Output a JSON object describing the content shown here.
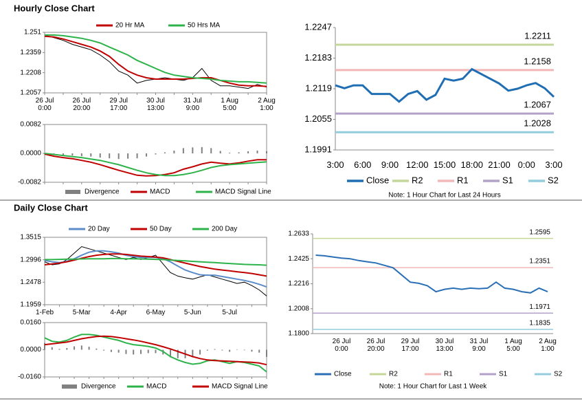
{
  "header": {
    "hourly_title": "Hourly Close Chart",
    "daily_title": "Daily Close Chart"
  },
  "chart_data": [
    {
      "type": "line",
      "categories": [
        "26 Jul\n0:00",
        null,
        null,
        null,
        "26 Jul\n20:00",
        null,
        null,
        null,
        "29 Jul\n17:00",
        null,
        null,
        null,
        "30 Jul\n13:00",
        null,
        null,
        null,
        "31 Jul\n9:00",
        null,
        null,
        null,
        "1 Aug\n5:00",
        null,
        null,
        null,
        "2 Aug\n1:00"
      ],
      "ylim": [
        1.2057,
        1.251
      ],
      "yticks": [
        1.2057,
        1.2208,
        1.2359,
        1.251
      ],
      "series": [
        {
          "color": "#000000",
          "values": [
            1.249,
            1.247,
            1.245,
            1.242,
            1.24,
            1.238,
            1.234,
            1.229,
            1.222,
            1.219,
            1.213,
            1.215,
            1.216,
            1.217,
            1.216,
            1.215,
            1.217,
            1.224,
            1.215,
            1.211,
            1.211,
            1.21,
            1.209,
            1.212,
            1.21
          ]
        },
        {
          "name": "20 Hr MA",
          "color": "#c00000",
          "values": [
            1.248,
            1.2475,
            1.246,
            1.244,
            1.242,
            1.24,
            1.237,
            1.233,
            1.227,
            1.222,
            1.219,
            1.217,
            1.216,
            1.216,
            1.216,
            1.216,
            1.2165,
            1.217,
            1.217,
            1.215,
            1.213,
            1.2115,
            1.211,
            1.211,
            1.2105
          ]
        },
        {
          "name": "50 Hrs MA",
          "color": "#2db34a",
          "values": [
            1.249,
            1.249,
            1.2485,
            1.2475,
            1.2465,
            1.245,
            1.243,
            1.24,
            1.237,
            1.234,
            1.23,
            1.227,
            1.224,
            1.221,
            1.219,
            1.218,
            1.217,
            1.2165,
            1.216,
            1.215,
            1.2145,
            1.214,
            1.214,
            1.2135,
            1.213
          ]
        }
      ]
    },
    {
      "type": "line",
      "ylim": [
        -0.0082,
        0.0082
      ],
      "yticks": [
        -0.0082,
        {
          "value": 0,
          "label": "0.0000"
        },
        0.0082
      ],
      "series": [
        {
          "name": "Divergence",
          "type": "bar",
          "color": "#808080",
          "values": [
            -0.0002,
            -0.0005,
            -0.0006,
            -0.0006,
            -0.0008,
            -0.0009,
            -0.0012,
            -0.0014,
            -0.0016,
            -0.0015,
            -0.0014,
            -0.0009,
            -0.0003,
            0.0003,
            0.0008,
            0.0015,
            0.0017,
            0.0018,
            0.0015,
            0.0007,
            0.0002,
            0.0003,
            0.0006,
            0.0008,
            0.0006
          ]
        },
        {
          "name": "MACD",
          "color": "#c00000",
          "values": [
            -0.0002,
            -0.0008,
            -0.0012,
            -0.0015,
            -0.002,
            -0.0025,
            -0.0032,
            -0.004,
            -0.0048,
            -0.0055,
            -0.0062,
            -0.0064,
            -0.0063,
            -0.006,
            -0.0055,
            -0.0045,
            -0.0038,
            -0.003,
            -0.0025,
            -0.0028,
            -0.003,
            -0.0027,
            -0.0022,
            -0.0018,
            -0.0018
          ]
        },
        {
          "name": "MACD Signal Line",
          "color": "#2db34a",
          "values": [
            0,
            -0.0003,
            -0.0006,
            -0.0009,
            -0.0012,
            -0.0016,
            -0.002,
            -0.0026,
            -0.0032,
            -0.004,
            -0.0048,
            -0.0055,
            -0.006,
            -0.0063,
            -0.0063,
            -0.006,
            -0.0055,
            -0.0048,
            -0.004,
            -0.0035,
            -0.0032,
            -0.003,
            -0.0028,
            -0.0026,
            -0.0024
          ]
        }
      ]
    },
    {
      "type": "line",
      "categories": [
        "3:00",
        null,
        null,
        "6:00",
        null,
        null,
        "9:00",
        null,
        null,
        "12:00",
        null,
        null,
        "15:00",
        null,
        null,
        "18:00",
        null,
        null,
        "21:00",
        null,
        null,
        "0:00",
        null,
        null,
        "3:00"
      ],
      "ylim": [
        1.1991,
        1.2247
      ],
      "yticks": [
        1.1991,
        1.2055,
        1.2119,
        1.2183,
        1.2247
      ],
      "series": [
        {
          "name": "Close",
          "color": "#1f6db3",
          "values": [
            1.2126,
            1.212,
            1.2126,
            1.2126,
            1.2108,
            1.2108,
            1.2108,
            1.2092,
            1.2108,
            1.2114,
            1.2096,
            1.2106,
            1.214,
            1.2136,
            1.214,
            1.216,
            1.215,
            1.214,
            1.213,
            1.2115,
            1.2119,
            1.2126,
            1.2131,
            1.212,
            1.2102
          ]
        }
      ],
      "levels": [
        {
          "name": "R2",
          "color": "#c4d79b",
          "value": 1.2211
        },
        {
          "name": "R1",
          "color": "#f2b8b8",
          "value": 1.2158
        },
        {
          "name": "S1",
          "color": "#b3a2c7",
          "value": 1.2067
        },
        {
          "name": "S2",
          "color": "#93cddd",
          "value": 1.2028
        }
      ],
      "note": "Note: 1 Hour Chart for Last 24 Hours"
    },
    {
      "type": "line",
      "categories": [
        "1-Feb",
        null,
        null,
        null,
        null,
        "5-Mar",
        null,
        null,
        null,
        null,
        "4-Apr",
        null,
        null,
        null,
        null,
        "6-May",
        null,
        null,
        null,
        null,
        "5-Jun",
        null,
        null,
        null,
        null,
        "5-Jul",
        null,
        null,
        null,
        null,
        null
      ],
      "ylim": [
        1.1959,
        1.3515
      ],
      "yticks": [
        1.1959,
        1.2478,
        1.2996,
        1.3515
      ],
      "series": [
        {
          "color": "#000000",
          "values": [
            1.295,
            1.288,
            1.29,
            1.3,
            1.315,
            1.33,
            1.325,
            1.32,
            1.315,
            1.31,
            1.305,
            1.3,
            1.305,
            1.3,
            1.305,
            1.31,
            1.29,
            1.27,
            1.262,
            1.258,
            1.255,
            1.26,
            1.265,
            1.26,
            1.255,
            1.25,
            1.245,
            1.248,
            1.24,
            1.23,
            1.216
          ]
        },
        {
          "name": "20 Day",
          "color": "#5b8bc9",
          "values": [
            1.298,
            1.295,
            1.293,
            1.296,
            1.302,
            1.31,
            1.317,
            1.32,
            1.32,
            1.318,
            1.315,
            1.31,
            1.307,
            1.305,
            1.305,
            1.305,
            1.302,
            1.295,
            1.285,
            1.276,
            1.27,
            1.265,
            1.264,
            1.264,
            1.261,
            1.258,
            1.255,
            1.252,
            1.248,
            1.243,
            1.237
          ]
        },
        {
          "name": "50 Day",
          "color": "#c00000",
          "values": [
            1.288,
            1.29,
            1.292,
            1.295,
            1.299,
            1.303,
            1.307,
            1.31,
            1.312,
            1.313,
            1.313,
            1.312,
            1.31,
            1.308,
            1.307,
            1.306,
            1.304,
            1.3,
            1.296,
            1.292,
            1.288,
            1.284,
            1.281,
            1.278,
            1.276,
            1.274,
            1.272,
            1.27,
            1.268,
            1.265,
            1.262
          ]
        },
        {
          "name": "200 Day",
          "color": "#2db34a",
          "values": [
            1.3,
            1.3,
            1.3005,
            1.301,
            1.301,
            1.3015,
            1.302,
            1.302,
            1.302,
            1.3025,
            1.3025,
            1.302,
            1.302,
            1.3015,
            1.301,
            1.3005,
            1.3,
            1.299,
            1.298,
            1.297,
            1.296,
            1.295,
            1.294,
            1.293,
            1.292,
            1.291,
            1.29,
            1.289,
            1.2885,
            1.288,
            1.287
          ]
        }
      ]
    },
    {
      "type": "line",
      "ylim": [
        -0.016,
        0.016
      ],
      "yticks": [
        {
          "value": -0.016,
          "label": "-0.0160"
        },
        {
          "value": 0,
          "label": "0.0000"
        },
        {
          "value": 0.016,
          "label": "0.0160"
        }
      ],
      "series": [
        {
          "name": "Divergence",
          "type": "bar",
          "color": "#808080",
          "values": [
            0.004,
            0.0015,
            0.0005,
            0.001,
            0.002,
            0.0025,
            0.0018,
            0.0007,
            -0.0005,
            -0.0013,
            -0.0017,
            -0.0025,
            -0.0028,
            -0.0025,
            -0.002,
            -0.002,
            -0.0028,
            -0.0045,
            -0.005,
            -0.005,
            -0.0045,
            -0.0028,
            -0.0005,
            0.0004,
            -0.0004,
            -0.0012,
            0,
            -0.0003,
            -0.0011,
            -0.0017,
            -0.0042
          ]
        },
        {
          "name": "MACD",
          "color": "#2db34a",
          "values": [
            0.007,
            0.005,
            0.0045,
            0.0055,
            0.0075,
            0.009,
            0.009,
            0.0085,
            0.0075,
            0.0065,
            0.0055,
            0.004,
            0.003,
            0.0025,
            0.002,
            0.001,
            -0.001,
            -0.004,
            -0.006,
            -0.0075,
            -0.0085,
            -0.008,
            -0.0065,
            -0.006,
            -0.007,
            -0.008,
            -0.007,
            -0.0075,
            -0.0085,
            -0.0095,
            -0.013
          ]
        },
        {
          "name": "MACD Signal Line",
          "color": "#c00000",
          "values": [
            0.003,
            0.0035,
            0.004,
            0.0045,
            0.0055,
            0.0065,
            0.0072,
            0.0078,
            0.008,
            0.0078,
            0.0072,
            0.0065,
            0.0058,
            0.005,
            0.004,
            0.003,
            0.0018,
            0.0005,
            -0.001,
            -0.0025,
            -0.004,
            -0.0052,
            -0.006,
            -0.0064,
            -0.0066,
            -0.0068,
            -0.007,
            -0.0072,
            -0.0074,
            -0.0078,
            -0.0088
          ]
        }
      ]
    },
    {
      "type": "line",
      "categories": [
        null,
        null,
        null,
        "26 Jul\n0:00",
        null,
        null,
        null,
        "26 Jul\n20:00",
        null,
        null,
        null,
        "29 Jul\n17:00",
        null,
        null,
        null,
        "30 Jul\n13:00",
        null,
        null,
        null,
        "31 Jul\n9:00",
        null,
        null,
        null,
        "1 Aug\n5:00",
        null,
        null,
        null,
        "2 Aug\n1:00"
      ],
      "ylim": [
        1.18,
        1.2633
      ],
      "yticks": [
        {
          "value": 1.18,
          "label": "1.1800"
        },
        1.2008,
        1.2216,
        1.2425,
        1.2633
      ],
      "series": [
        {
          "name": "Close",
          "color": "#2a6fb5",
          "values": [
            1.2455,
            1.245,
            1.244,
            1.243,
            1.2425,
            1.241,
            1.24,
            1.239,
            1.237,
            1.235,
            1.229,
            1.223,
            1.222,
            1.22,
            1.215,
            1.217,
            1.218,
            1.217,
            1.218,
            1.2175,
            1.218,
            1.223,
            1.218,
            1.217,
            1.215,
            1.214,
            1.218,
            1.215
          ]
        }
      ],
      "levels": [
        {
          "name": "R2",
          "color": "#c4d79b",
          "value": 1.2595
        },
        {
          "name": "R1",
          "color": "#f2b8b8",
          "value": 1.2351
        },
        {
          "name": "S1",
          "color": "#b3a2c7",
          "value": 1.1971
        },
        {
          "name": "S2",
          "color": "#93cddd",
          "value": 1.1835
        }
      ],
      "note": "Note: 1 Hour Chart for Last 1 Week"
    }
  ]
}
